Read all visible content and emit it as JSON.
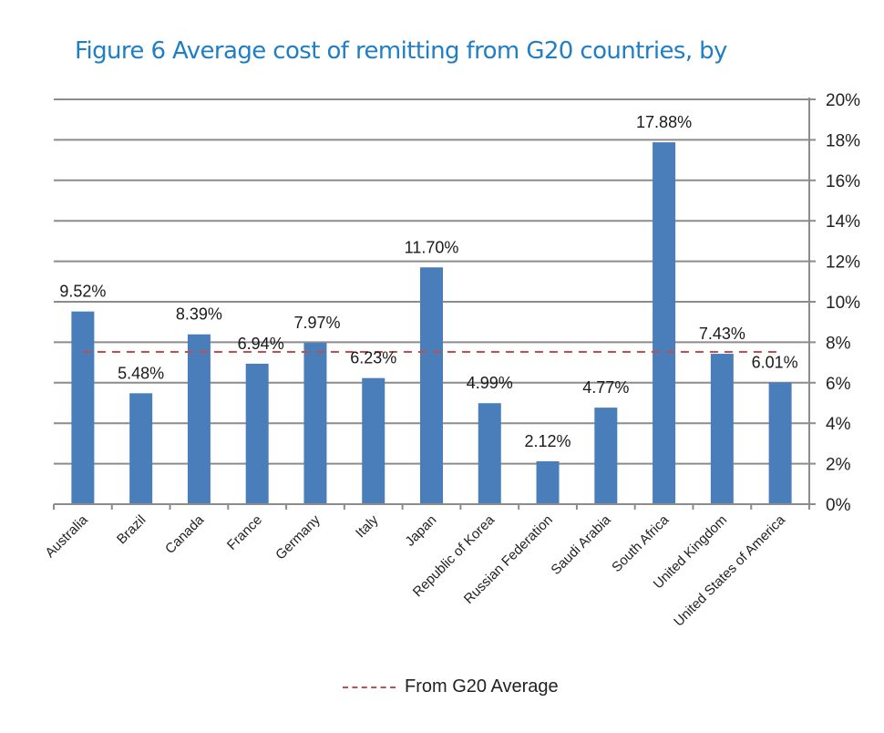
{
  "title": {
    "line1": "Figure 6 Average cost of remitting from G20 countries, by",
    "line2": "-"
  },
  "colors": {
    "title": "#1f7ec4",
    "bar": "#4a7ebb",
    "average_line": "#c0504d",
    "gridline": "#8c8c8c"
  },
  "legend": {
    "label": "From G20 Average"
  },
  "chart_data": {
    "type": "bar",
    "title": "Figure 6 Average cost of remitting from G20 countries, by",
    "xlabel": "",
    "ylabel": "",
    "categories": [
      "Australia",
      "Brazil",
      "Canada",
      "France",
      "Germany",
      "Italy",
      "Japan",
      "Republic of Korea",
      "Russian Federation",
      "Saudi Arabia",
      "South Africa",
      "United Kingdom",
      "United States of America"
    ],
    "series": [
      {
        "name": "Average cost of remitting",
        "values": [
          9.52,
          5.48,
          8.39,
          6.94,
          7.97,
          6.23,
          11.7,
          4.99,
          2.12,
          4.77,
          17.88,
          7.43,
          6.01
        ],
        "data_labels": [
          "9.52%",
          "5.48%",
          "8.39%",
          "6.94%",
          "7.97%",
          "6.23%",
          "11.70%",
          "4.99%",
          "2.12%",
          "4.77%",
          "17.88%",
          "7.43%",
          "6.01%"
        ]
      }
    ],
    "reference_line": {
      "name": "From G20 Average",
      "value": 7.52,
      "style": "dashed"
    },
    "ylim": [
      0,
      20
    ],
    "yticks": [
      0,
      2,
      4,
      6,
      8,
      10,
      12,
      14,
      16,
      18,
      20
    ],
    "ytick_labels": [
      "0%",
      "2%",
      "4%",
      "6%",
      "8%",
      "10%",
      "12%",
      "14%",
      "16%",
      "18%",
      "20%"
    ],
    "y_axis_side": "right",
    "grid": true,
    "legend_position": "bottom"
  }
}
